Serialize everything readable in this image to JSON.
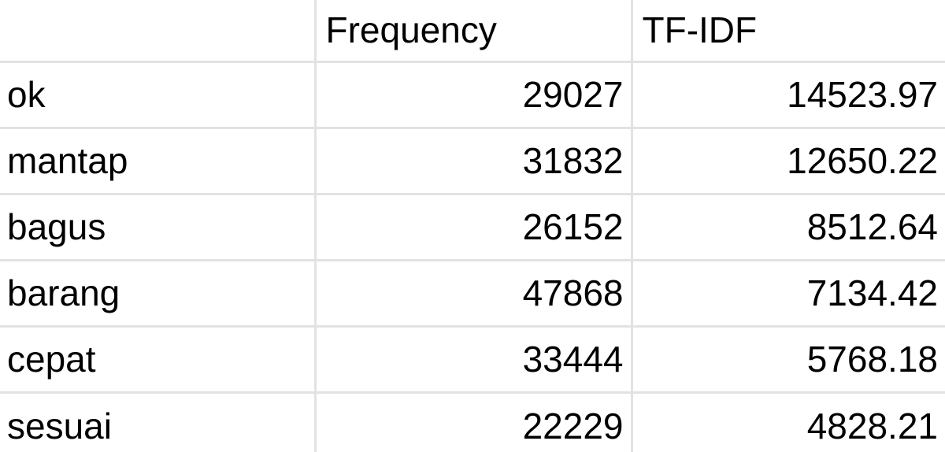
{
  "table": {
    "headers": [
      "",
      "Frequency",
      "TF-IDF"
    ],
    "rows": [
      {
        "term": "ok",
        "frequency": "29027",
        "tfidf": "14523.97"
      },
      {
        "term": "mantap",
        "frequency": "31832",
        "tfidf": "12650.22"
      },
      {
        "term": "bagus",
        "frequency": "26152",
        "tfidf": "8512.64"
      },
      {
        "term": "barang",
        "frequency": "47868",
        "tfidf": "7134.42"
      },
      {
        "term": "cepat",
        "frequency": "33444",
        "tfidf": "5768.18"
      },
      {
        "term": "sesuai",
        "frequency": "22229",
        "tfidf": "4828.21"
      }
    ]
  },
  "colors": {
    "gridline": "#e2e2e2",
    "text": "#000000",
    "background": "#ffffff"
  }
}
